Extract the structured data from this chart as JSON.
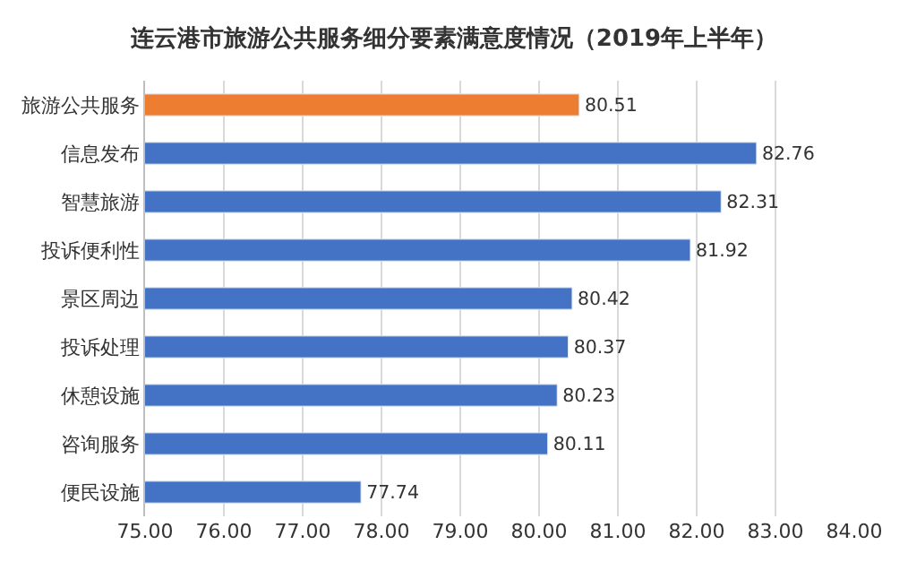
{
  "chart_data": {
    "type": "bar",
    "orientation": "horizontal",
    "title": "连云港市旅游公共服务细分要素满意度情况（2019年上半年）",
    "categories": [
      "旅游公共服务",
      "信息发布",
      "智慧旅游",
      "投诉便利性",
      "景区周边",
      "投诉处理",
      "休憩设施",
      "咨询服务",
      "便民设施"
    ],
    "values": [
      80.51,
      82.76,
      82.31,
      81.92,
      80.42,
      80.37,
      80.23,
      80.11,
      77.74
    ],
    "colors": [
      "#ed7d31",
      "#4472c4",
      "#4472c4",
      "#4472c4",
      "#4472c4",
      "#4472c4",
      "#4472c4",
      "#4472c4",
      "#4472c4"
    ],
    "xlim": [
      75,
      84
    ],
    "xticks": [
      {
        "value": 75,
        "label": "75.00"
      },
      {
        "value": 76,
        "label": "76.00"
      },
      {
        "value": 77,
        "label": "77.00"
      },
      {
        "value": 78,
        "label": "78.00"
      },
      {
        "value": 79,
        "label": "79.00"
      },
      {
        "value": 80,
        "label": "80.00"
      },
      {
        "value": 81,
        "label": "81.00"
      },
      {
        "value": 82,
        "label": "82.00"
      },
      {
        "value": 83,
        "label": "83.00"
      },
      {
        "value": 84,
        "label": "84.00"
      }
    ],
    "grid": "x",
    "data_labels": true,
    "legend": false
  }
}
